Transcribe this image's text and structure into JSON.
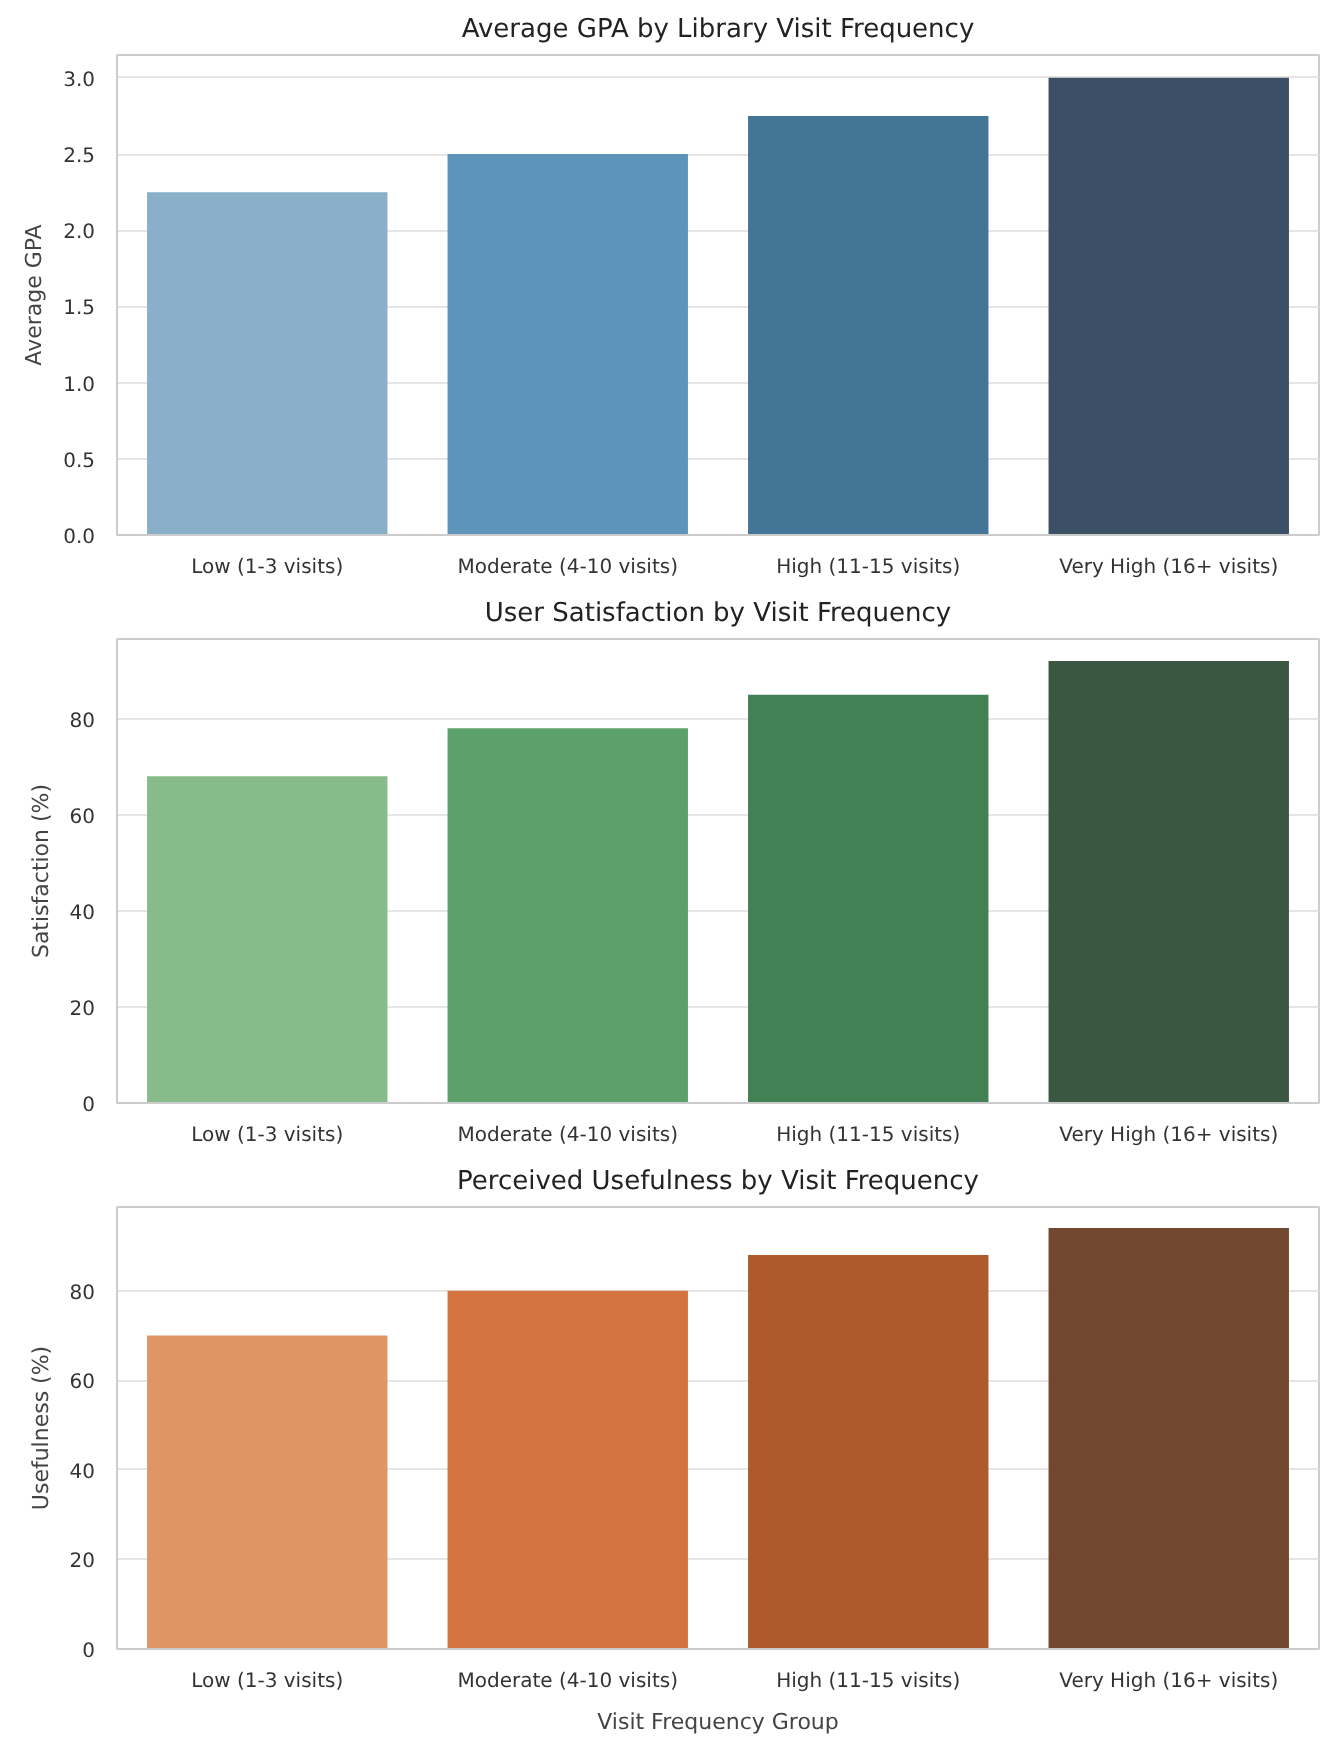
{
  "chart_data": [
    {
      "type": "bar",
      "title": "Average GPA by Library Visit Frequency",
      "ylabel": "Average GPA",
      "categories": [
        "Low (1-3 visits)",
        "Moderate (4-10 visits)",
        "High (11-15 visits)",
        "Very High (16+ visits)"
      ],
      "values": [
        2.25,
        2.5,
        2.75,
        3.0
      ],
      "colors": [
        "#89afc9",
        "#5c94bb",
        "#437596",
        "#3b5064"
      ],
      "ylim": [
        0,
        3.15
      ],
      "yticks": [
        {
          "value": 0,
          "label": "0.0"
        },
        {
          "value": 0.5,
          "label": "0.5"
        },
        {
          "value": 1,
          "label": "1.0"
        },
        {
          "value": 1.5,
          "label": "1.5"
        },
        {
          "value": 2,
          "label": "2.0"
        },
        {
          "value": 2.5,
          "label": "2.5"
        },
        {
          "value": 3,
          "label": "3.0"
        }
      ],
      "grid": "y"
    },
    {
      "type": "bar",
      "title": "User Satisfaction by Visit Frequency",
      "ylabel": "Satisfaction (%)",
      "categories": [
        "Low (1-3 visits)",
        "Moderate (4-10 visits)",
        "High (11-15 visits)",
        "Very High (16+ visits)"
      ],
      "values": [
        68,
        78,
        85,
        92
      ],
      "colors": [
        "#88bb8a",
        "#5ca06c",
        "#418153",
        "#3a5741"
      ],
      "ylim": [
        0,
        96.6
      ],
      "yticks": [
        0,
        20,
        40,
        60,
        80
      ],
      "grid": "y"
    },
    {
      "type": "bar",
      "title": "Perceived Usefulness by Visit Frequency",
      "xlabel": "Visit Frequency Group",
      "ylabel": "Usefulness (%)",
      "categories": [
        "Low (1-3 visits)",
        "Moderate (4-10 visits)",
        "High (11-15 visits)",
        "Very High (16+ visits)"
      ],
      "values": [
        70,
        80,
        88,
        94
      ],
      "colors": [
        "#e09664",
        "#d3743f",
        "#ae5a2c",
        "#71472f"
      ],
      "ylim": [
        0,
        98.7
      ],
      "yticks": [
        0,
        20,
        40,
        60,
        80
      ],
      "grid": "y"
    }
  ]
}
